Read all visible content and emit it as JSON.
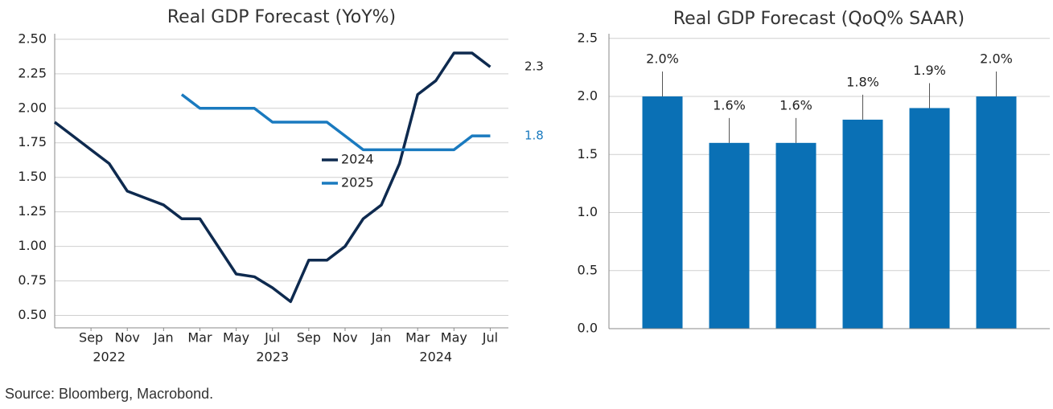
{
  "chart_data": [
    {
      "type": "line",
      "title": "Real GDP Forecast (YoY%)",
      "x": [
        "2022-07",
        "2022-08",
        "2022-09",
        "2022-10",
        "2022-11",
        "2022-12",
        "2023-01",
        "2023-02",
        "2023-03",
        "2023-04",
        "2023-05",
        "2023-06",
        "2023-07",
        "2023-08",
        "2023-09",
        "2023-10",
        "2023-11",
        "2023-12",
        "2024-01",
        "2024-02",
        "2024-03",
        "2024-04",
        "2024-05",
        "2024-06",
        "2024-07"
      ],
      "series": [
        {
          "name": "2024",
          "color": "#0e2a4f",
          "values": [
            1.9,
            1.8,
            1.7,
            1.6,
            1.4,
            1.35,
            1.3,
            1.2,
            1.2,
            1.0,
            0.8,
            0.78,
            0.7,
            0.6,
            0.9,
            0.9,
            1.0,
            1.2,
            1.3,
            1.6,
            2.1,
            2.2,
            2.4,
            2.4,
            2.3
          ]
        },
        {
          "name": "2025",
          "color": "#1a7abf",
          "values": [
            null,
            null,
            null,
            null,
            null,
            null,
            null,
            2.1,
            2.0,
            2.0,
            2.0,
            2.0,
            1.9,
            1.9,
            1.9,
            1.9,
            1.8,
            1.7,
            1.7,
            1.7,
            1.7,
            1.7,
            1.7,
            1.8,
            1.8
          ]
        }
      ],
      "xlim": [
        "2022-07",
        "2024-08"
      ],
      "xticks": [
        {
          "value": "2022-09",
          "label": "Sep"
        },
        {
          "value": "2022-11",
          "label": "Nov"
        },
        {
          "value": "2023-01",
          "label": "Jan"
        },
        {
          "value": "2023-03",
          "label": "Mar"
        },
        {
          "value": "2023-05",
          "label": "May"
        },
        {
          "value": "2023-07",
          "label": "Jul"
        },
        {
          "value": "2023-09",
          "label": "Sep"
        },
        {
          "value": "2023-11",
          "label": "Nov"
        },
        {
          "value": "2024-01",
          "label": "Jan"
        },
        {
          "value": "2024-03",
          "label": "Mar"
        },
        {
          "value": "2024-05",
          "label": "May"
        },
        {
          "value": "2024-07",
          "label": "Jul"
        }
      ],
      "year_labels": [
        {
          "value": "2022-10",
          "label": "2022"
        },
        {
          "value": "2023-07",
          "label": "2023"
        },
        {
          "value": "2024-04",
          "label": "2024"
        }
      ],
      "ylim": [
        0.41,
        2.54
      ],
      "yticks": [
        {
          "value": 0.5,
          "label": "0.50"
        },
        0.75,
        {
          "value": 1,
          "label": "1.00"
        },
        1.25,
        {
          "value": 1.5,
          "label": "1.50"
        },
        1.75,
        {
          "value": 2,
          "label": "2.00"
        },
        2.25,
        {
          "value": 2.5,
          "label": "2.50"
        }
      ],
      "grid": true,
      "legend": "center"
    },
    {
      "type": "bar",
      "title": "Real GDP Forecast (QoQ% SAAR)",
      "categories": [
        null,
        null,
        null,
        null,
        null,
        null
      ],
      "values": [
        2.0,
        1.6,
        1.6,
        1.8,
        1.9,
        2.0
      ],
      "value_labels": [
        "2.0%",
        "1.6%",
        "1.6%",
        "1.8%",
        "1.9%",
        "2.0%"
      ],
      "color": "#0a70b5",
      "ylim": [
        0,
        2.54
      ],
      "yticks": [
        {
          "value": 0,
          "label": "0.0"
        },
        {
          "value": 0.5,
          "label": "0.5"
        },
        {
          "value": 1,
          "label": "1.0"
        },
        {
          "value": 1.5,
          "label": "1.5"
        },
        {
          "value": 2,
          "label": "2.0"
        },
        {
          "value": 2.5,
          "label": "2.5"
        }
      ],
      "grid": true
    }
  ],
  "source": "Source: Bloomberg, Macrobond."
}
